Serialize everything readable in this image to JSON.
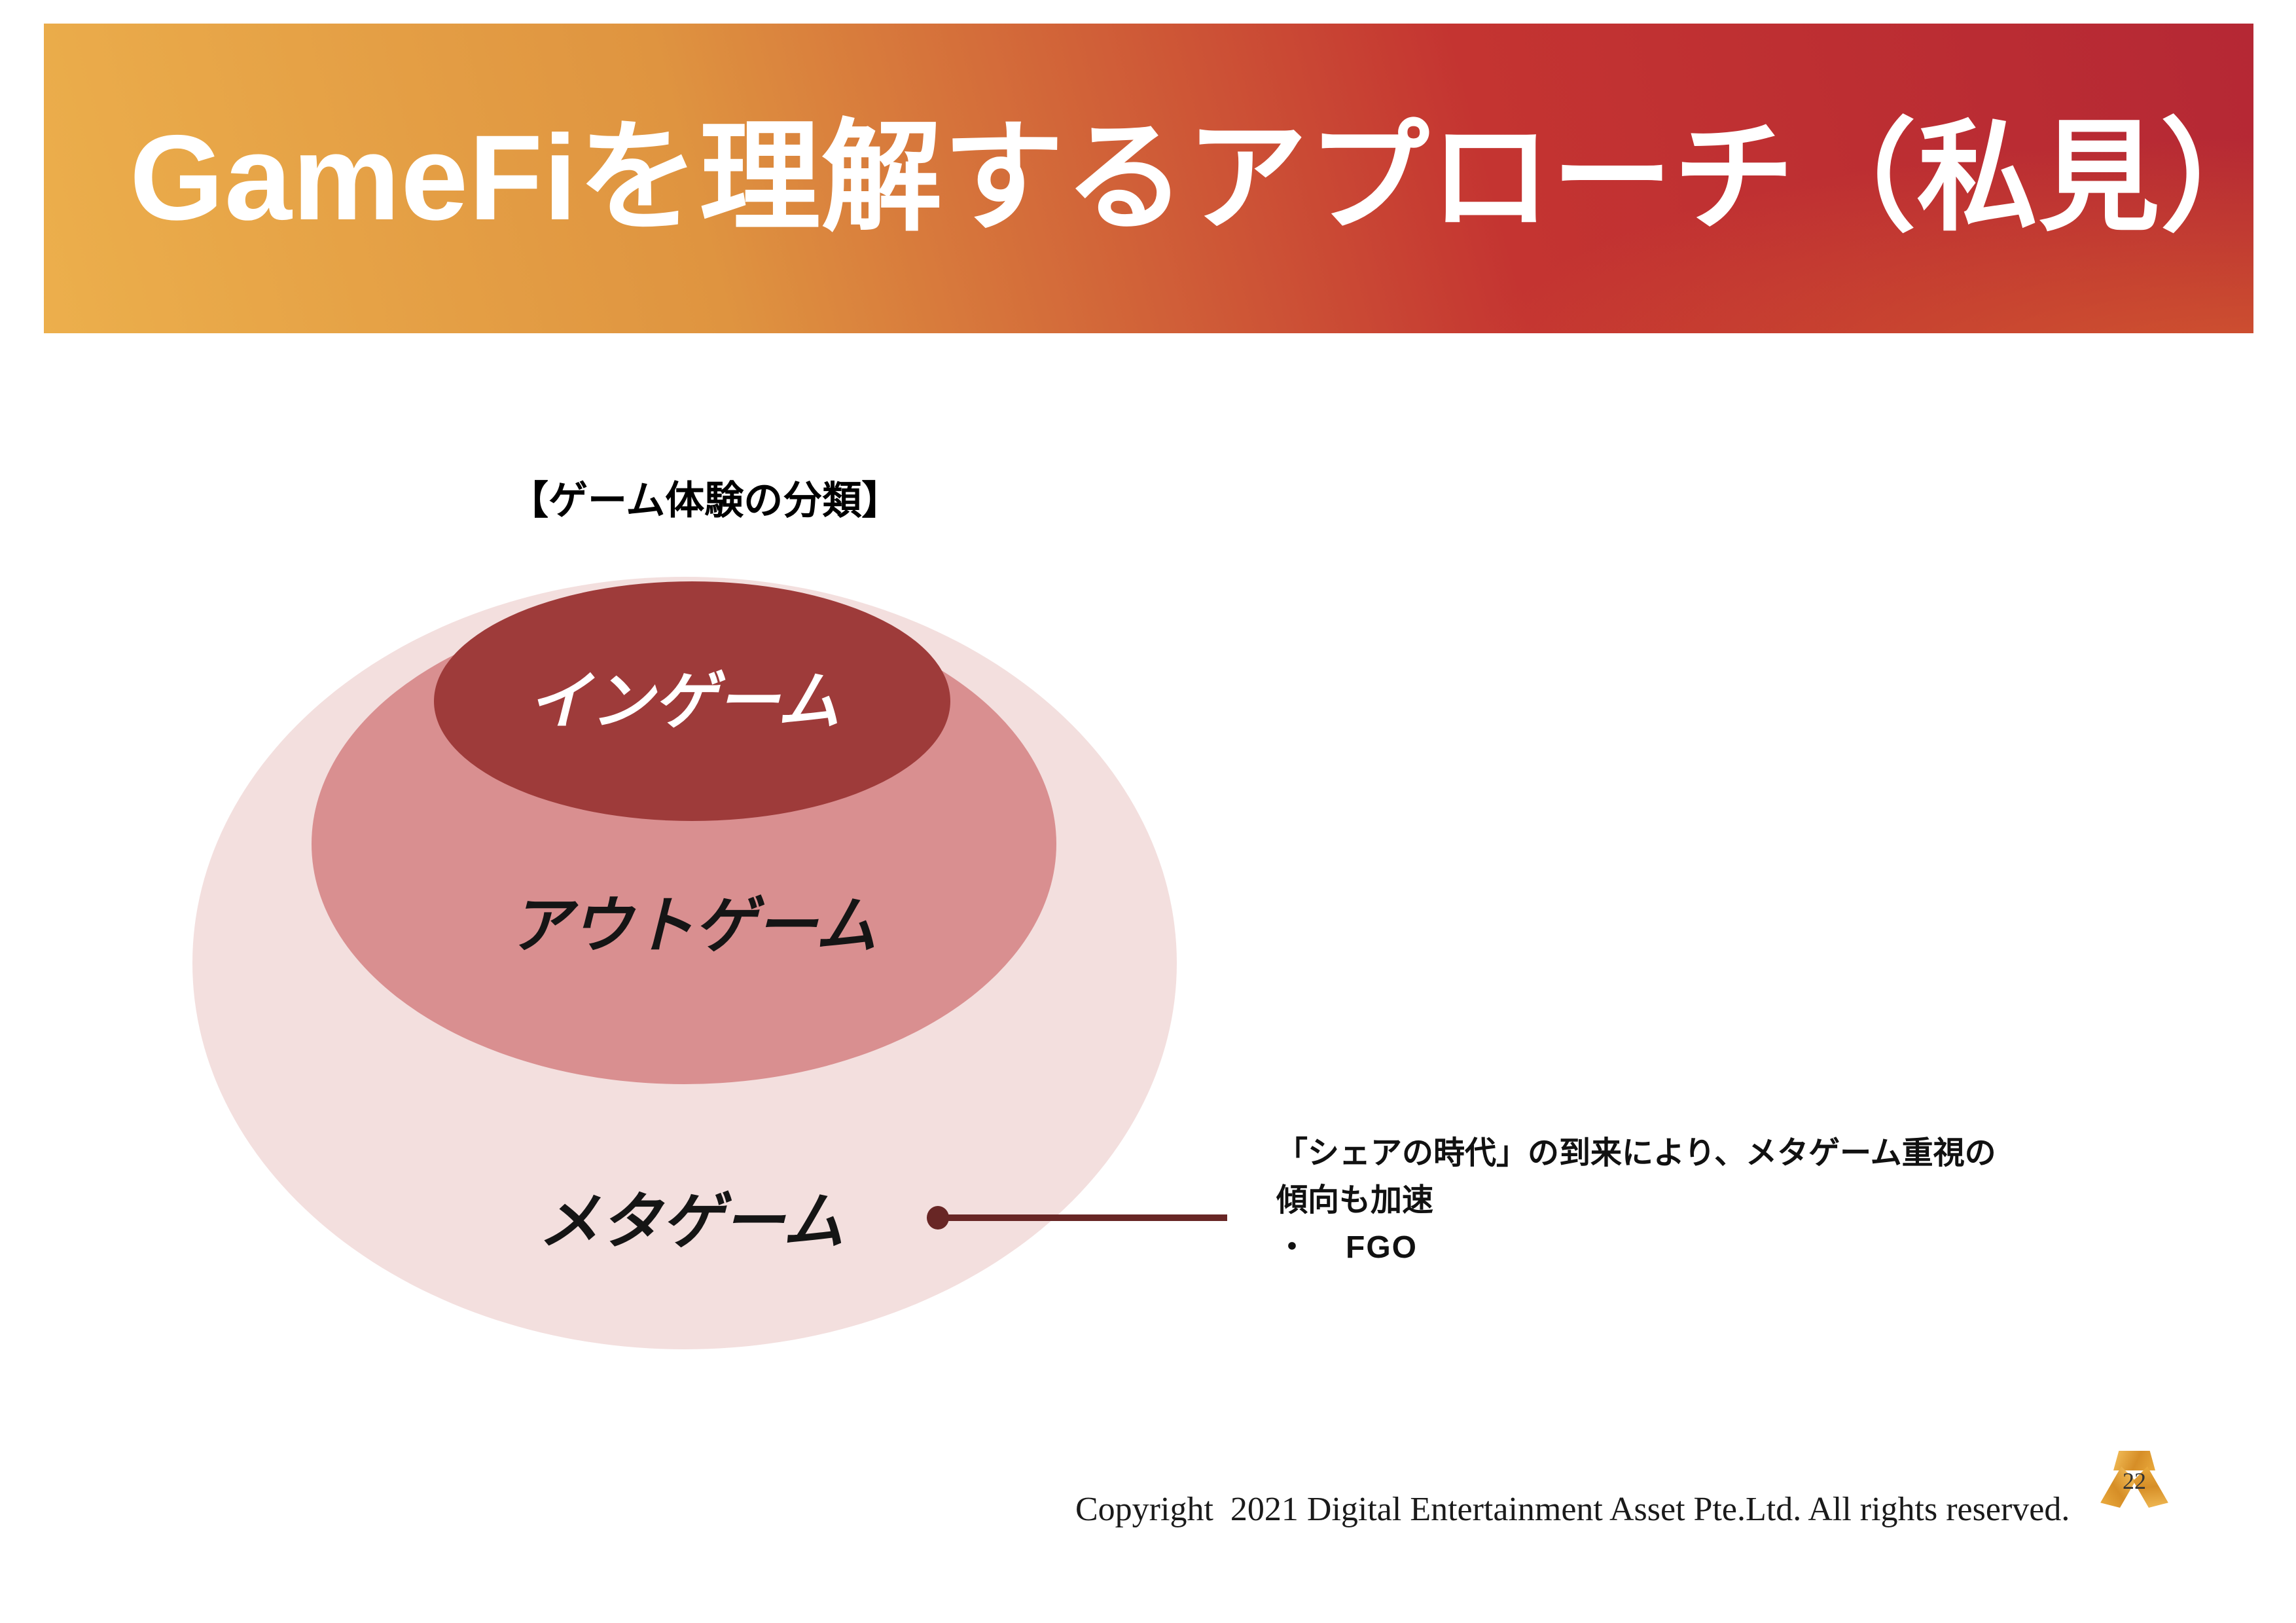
{
  "header": {
    "title": "GameFiを理解するアプローチ（私見）"
  },
  "section_label": "【ゲーム体験の分類】",
  "diagram": {
    "rings": [
      {
        "id": "in-game",
        "label": "インゲーム",
        "color": "#9E3B3A",
        "text_color": "#FFFFFF"
      },
      {
        "id": "out-game",
        "label": "アウトゲーム",
        "color": "#D98F90",
        "text_color": "#151515"
      },
      {
        "id": "meta-game",
        "label": "メタゲーム",
        "color": "#F3DFDE",
        "text_color": "#151515"
      }
    ],
    "connector_color": "#682625"
  },
  "annotation": {
    "line1": "「シェアの時代」の到来により、メタゲーム重視の",
    "line2": "傾向も加速",
    "bullet": "・",
    "bullet_item": "FGO"
  },
  "footer": {
    "copyright": "Copyright  2021 Digital Entertainment Asset Pte.Ltd. All rights reserved.",
    "page_number": "22"
  },
  "colors": {
    "banner_gradient": [
      "#ECAF4C",
      "#DF9440",
      "#C43431",
      "#B52834"
    ],
    "banner_corner_glow": "#D8622D",
    "title_text": "#FFFFFF",
    "body_text": "#111111",
    "logo_gold_light": "#F4C05B",
    "logo_gold_dark": "#C87C1C"
  }
}
